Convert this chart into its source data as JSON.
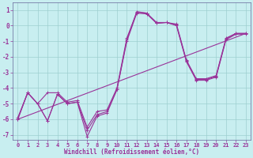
{
  "xlabel": "Windchill (Refroidissement éolien,°C)",
  "background_color": "#c8eef0",
  "grid_color": "#9ecfcf",
  "line_color": "#993399",
  "xlim": [
    -0.5,
    23.5
  ],
  "ylim": [
    -7.3,
    1.5
  ],
  "yticks": [
    1,
    0,
    -1,
    -2,
    -3,
    -4,
    -5,
    -6,
    -7
  ],
  "xticks": [
    0,
    1,
    2,
    3,
    4,
    5,
    6,
    7,
    8,
    9,
    10,
    11,
    12,
    13,
    14,
    15,
    16,
    17,
    18,
    19,
    20,
    21,
    22,
    23
  ],
  "line1_x": [
    0,
    1,
    2,
    3,
    4,
    5,
    6,
    7,
    8,
    9,
    10,
    11,
    12,
    13,
    14,
    15,
    16,
    17,
    18,
    19,
    20,
    21,
    22,
    23
  ],
  "line1_y": [
    -6.0,
    -4.3,
    -5.0,
    -6.1,
    -4.4,
    -5.0,
    -4.9,
    -7.1,
    -5.8,
    -5.6,
    -4.1,
    -0.9,
    0.9,
    0.8,
    0.2,
    0.2,
    0.1,
    -2.2,
    -3.4,
    -3.4,
    -3.2,
    -0.8,
    -0.5,
    -0.5
  ],
  "line2_x": [
    0,
    1,
    2,
    3,
    4,
    5,
    6,
    7,
    8,
    9,
    10,
    11,
    12,
    13,
    14,
    15,
    16,
    17,
    18,
    19,
    20,
    21,
    22,
    23
  ],
  "line2_y": [
    -5.9,
    -4.3,
    -5.0,
    -4.3,
    -4.3,
    -4.9,
    -4.8,
    -6.5,
    -5.5,
    -5.4,
    -4.0,
    -0.8,
    0.85,
    0.8,
    0.15,
    0.2,
    0.0,
    -2.3,
    -3.5,
    -3.5,
    -3.3,
    -0.9,
    -0.55,
    -0.55
  ],
  "line3_x": [
    0,
    1,
    2,
    3,
    4,
    5,
    6,
    7,
    8,
    9,
    10,
    11,
    12,
    13,
    14,
    15,
    16,
    17,
    18,
    19,
    20,
    21,
    22,
    23
  ],
  "line3_y": [
    -6.0,
    -4.3,
    -5.0,
    -6.1,
    -4.4,
    -5.0,
    -4.9,
    -6.7,
    -5.7,
    -5.5,
    -4.1,
    -1.0,
    0.8,
    0.75,
    0.15,
    0.2,
    0.05,
    -2.25,
    -3.45,
    -3.45,
    -3.25,
    -0.85,
    -0.5,
    -0.5
  ],
  "line4_x": [
    0,
    23
  ],
  "line4_y": [
    -6.0,
    -0.5
  ],
  "marker": "+"
}
